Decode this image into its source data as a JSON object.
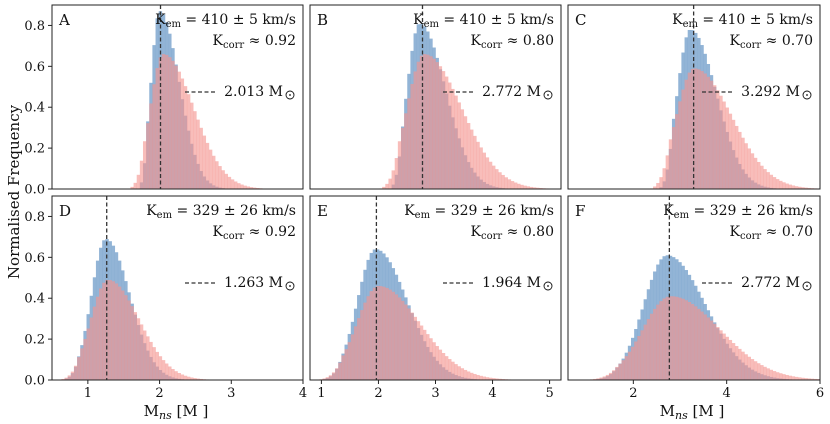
{
  "figure": {
    "ylabel": "Normalised Frequency",
    "xlabel": "M",
    "xlabel_sub": "ns",
    "xlabel_unit": "[M",
    "xlabel_unit_close": "]"
  },
  "colors": {
    "blue": "#7fa7cf",
    "red": "#f4948f",
    "dashed": "#333333",
    "frame": "#222222"
  },
  "chart_data": [
    {
      "type": "histogram",
      "panel": "A",
      "k_em": "410 ± 5 km/s",
      "k_corr": "≈ 0.92",
      "k_em_label": "K",
      "k_em_sub": "em",
      "k_corr_label": "K",
      "k_corr_sub": "corr",
      "median_label": "2.013 M",
      "median_value": 2.013,
      "xlim": [
        0.5,
        4.0
      ],
      "ylim": [
        0,
        0.9
      ],
      "xticks": [],
      "yticks": [
        0.0,
        0.2,
        0.4,
        0.6,
        0.8
      ],
      "ytick_labels": [
        "0.0",
        "0.2",
        "0.4",
        "0.6",
        "0.8"
      ],
      "series": [
        {
          "name": "blue",
          "peak_x": 2.0,
          "peak_y": 0.87,
          "sigma_left": 0.12,
          "sigma_right": 0.27,
          "onset": 1.7
        },
        {
          "name": "red",
          "peak_x": 2.05,
          "peak_y": 0.66,
          "sigma_left": 0.18,
          "sigma_right": 0.42,
          "onset": 1.55
        }
      ]
    },
    {
      "type": "histogram",
      "panel": "B",
      "k_em": "410 ± 5 km/s",
      "k_corr": "≈ 0.80",
      "k_em_label": "K",
      "k_em_sub": "em",
      "k_corr_label": "K",
      "k_corr_sub": "corr",
      "median_label": "2.772 M",
      "median_value": 2.772,
      "xlim": [
        0.8,
        5.2
      ],
      "ylim": [
        0,
        0.9
      ],
      "xticks": [],
      "yticks": [],
      "ytick_labels": [],
      "series": [
        {
          "name": "blue",
          "peak_x": 2.72,
          "peak_y": 0.81,
          "sigma_left": 0.22,
          "sigma_right": 0.45,
          "onset": 2.2
        },
        {
          "name": "red",
          "peak_x": 2.8,
          "peak_y": 0.66,
          "sigma_left": 0.3,
          "sigma_right": 0.65,
          "onset": 2.0
        }
      ]
    },
    {
      "type": "histogram",
      "panel": "C",
      "k_em": "410 ± 5 km/s",
      "k_corr": "≈ 0.70",
      "k_em_label": "K",
      "k_em_sub": "em",
      "k_corr_label": "K",
      "k_corr_sub": "corr",
      "median_label": "3.292 M",
      "median_value": 3.292,
      "xlim": [
        0.6,
        6.0
      ],
      "ylim": [
        0,
        0.9
      ],
      "xticks": [],
      "yticks": [],
      "ytick_labels": [],
      "series": [
        {
          "name": "blue",
          "peak_x": 3.22,
          "peak_y": 0.78,
          "sigma_left": 0.28,
          "sigma_right": 0.55,
          "onset": 2.55
        },
        {
          "name": "red",
          "peak_x": 3.3,
          "peak_y": 0.59,
          "sigma_left": 0.38,
          "sigma_right": 0.8,
          "onset": 2.35
        }
      ]
    },
    {
      "type": "histogram",
      "panel": "D",
      "k_em": "329 ± 26 km/s",
      "k_corr": "≈ 0.92",
      "k_em_label": "K",
      "k_em_sub": "em",
      "k_corr_label": "K",
      "k_corr_sub": "corr",
      "median_label": "1.263 M",
      "median_value": 1.263,
      "xlim": [
        0.5,
        4.0
      ],
      "ylim": [
        0,
        0.9
      ],
      "xticks": [
        1,
        2,
        3,
        4
      ],
      "xtick_labels": [
        "1",
        "2",
        "3",
        "4"
      ],
      "yticks": [
        0.0,
        0.2,
        0.4,
        0.6,
        0.8
      ],
      "ytick_labels": [
        "0.0",
        "0.2",
        "0.4",
        "0.6",
        "0.8"
      ],
      "series": [
        {
          "name": "blue",
          "peak_x": 1.25,
          "peak_y": 0.69,
          "sigma_left": 0.2,
          "sigma_right": 0.33,
          "onset": 0.55
        },
        {
          "name": "red",
          "peak_x": 1.28,
          "peak_y": 0.49,
          "sigma_left": 0.24,
          "sigma_right": 0.43,
          "onset": 0.55
        }
      ]
    },
    {
      "type": "histogram",
      "panel": "E",
      "k_em": "329 ± 26 km/s",
      "k_corr": "≈ 0.80",
      "k_em_label": "K",
      "k_em_sub": "em",
      "k_corr_label": "K",
      "k_corr_sub": "corr",
      "median_label": "1.964 M",
      "median_value": 1.964,
      "xlim": [
        0.8,
        5.2
      ],
      "ylim": [
        0,
        0.9
      ],
      "xticks": [
        1,
        2,
        3,
        4,
        5
      ],
      "xtick_labels": [
        "1",
        "2",
        "3",
        "4",
        "5"
      ],
      "yticks": [],
      "ytick_labels": [],
      "series": [
        {
          "name": "blue",
          "peak_x": 1.95,
          "peak_y": 0.64,
          "sigma_left": 0.32,
          "sigma_right": 0.55,
          "onset": 0.85
        },
        {
          "name": "red",
          "peak_x": 2.0,
          "peak_y": 0.46,
          "sigma_left": 0.38,
          "sigma_right": 0.72,
          "onset": 0.85
        }
      ]
    },
    {
      "type": "histogram",
      "panel": "F",
      "k_em": "329 ± 26 km/s",
      "k_corr": "≈ 0.70",
      "k_em_label": "K",
      "k_em_sub": "em",
      "k_corr_label": "K",
      "k_corr_sub": "corr",
      "median_label": "2.772 M",
      "median_value": 2.772,
      "xlim": [
        0.6,
        6.0
      ],
      "ylim": [
        0,
        0.9
      ],
      "xticks": [
        2,
        4,
        6
      ],
      "xtick_labels": [
        "2",
        "4",
        "6"
      ],
      "yticks": [],
      "ytick_labels": [],
      "series": [
        {
          "name": "blue",
          "peak_x": 2.72,
          "peak_y": 0.61,
          "sigma_left": 0.5,
          "sigma_right": 0.82,
          "onset": 0.7
        },
        {
          "name": "red",
          "peak_x": 2.8,
          "peak_y": 0.41,
          "sigma_left": 0.6,
          "sigma_right": 1.05,
          "onset": 0.7
        }
      ]
    }
  ]
}
